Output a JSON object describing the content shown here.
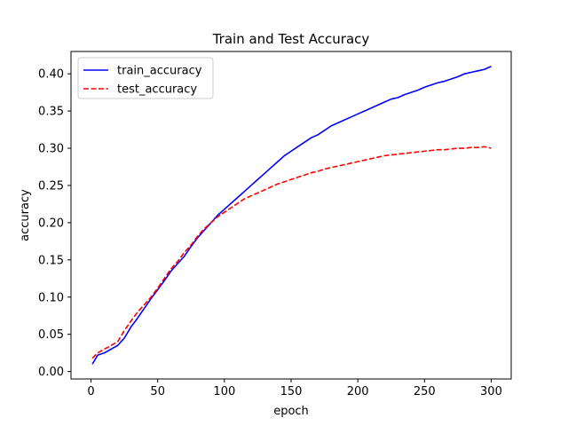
{
  "chart_data": {
    "type": "line",
    "title": "Train and Test Accuracy",
    "xlabel": "epoch",
    "ylabel": "accuracy",
    "xlim": [
      -15,
      315
    ],
    "ylim": [
      -0.01,
      0.43
    ],
    "xticks": [
      0,
      50,
      100,
      150,
      200,
      250,
      300
    ],
    "yticks": [
      0.0,
      0.05,
      0.1,
      0.15,
      0.2,
      0.25,
      0.3,
      0.35,
      0.4
    ],
    "ytick_labels": [
      "0.00",
      "0.05",
      "0.10",
      "0.15",
      "0.20",
      "0.25",
      "0.30",
      "0.35",
      "0.40"
    ],
    "grid": false,
    "legend_position": "upper-left",
    "series": [
      {
        "name": "train_accuracy",
        "color": "#0000ff",
        "style": "solid",
        "x": [
          1,
          5,
          10,
          15,
          20,
          25,
          30,
          35,
          40,
          45,
          50,
          55,
          60,
          65,
          70,
          75,
          80,
          85,
          90,
          95,
          100,
          105,
          110,
          115,
          120,
          125,
          130,
          135,
          140,
          145,
          150,
          155,
          160,
          165,
          170,
          175,
          180,
          185,
          190,
          195,
          200,
          205,
          210,
          215,
          220,
          225,
          230,
          235,
          240,
          245,
          250,
          255,
          260,
          265,
          270,
          275,
          280,
          285,
          290,
          295,
          300
        ],
        "y": [
          0.01,
          0.022,
          0.025,
          0.03,
          0.035,
          0.045,
          0.06,
          0.072,
          0.085,
          0.098,
          0.11,
          0.122,
          0.135,
          0.145,
          0.155,
          0.168,
          0.18,
          0.19,
          0.2,
          0.21,
          0.218,
          0.226,
          0.234,
          0.242,
          0.25,
          0.258,
          0.266,
          0.274,
          0.282,
          0.29,
          0.296,
          0.302,
          0.308,
          0.314,
          0.318,
          0.324,
          0.33,
          0.334,
          0.338,
          0.342,
          0.346,
          0.35,
          0.354,
          0.358,
          0.362,
          0.366,
          0.368,
          0.372,
          0.375,
          0.378,
          0.382,
          0.385,
          0.388,
          0.39,
          0.393,
          0.396,
          0.4,
          0.402,
          0.404,
          0.406,
          0.41
        ]
      },
      {
        "name": "test_accuracy",
        "color": "#ff0000",
        "style": "dashed",
        "x": [
          1,
          5,
          10,
          15,
          20,
          25,
          30,
          35,
          40,
          45,
          50,
          55,
          60,
          65,
          70,
          75,
          80,
          85,
          90,
          95,
          100,
          105,
          110,
          115,
          120,
          125,
          130,
          135,
          140,
          145,
          150,
          155,
          160,
          165,
          170,
          175,
          180,
          185,
          190,
          195,
          200,
          205,
          210,
          215,
          220,
          225,
          230,
          235,
          240,
          245,
          250,
          255,
          260,
          265,
          270,
          275,
          280,
          285,
          290,
          295,
          300
        ],
        "y": [
          0.018,
          0.025,
          0.03,
          0.035,
          0.04,
          0.055,
          0.068,
          0.08,
          0.09,
          0.1,
          0.112,
          0.125,
          0.138,
          0.148,
          0.16,
          0.17,
          0.182,
          0.192,
          0.2,
          0.208,
          0.214,
          0.22,
          0.226,
          0.232,
          0.236,
          0.24,
          0.244,
          0.248,
          0.252,
          0.255,
          0.258,
          0.261,
          0.264,
          0.267,
          0.269,
          0.272,
          0.274,
          0.276,
          0.278,
          0.28,
          0.282,
          0.284,
          0.286,
          0.288,
          0.29,
          0.291,
          0.292,
          0.293,
          0.294,
          0.295,
          0.296,
          0.297,
          0.298,
          0.298,
          0.299,
          0.3,
          0.3,
          0.301,
          0.301,
          0.302,
          0.3
        ]
      }
    ]
  }
}
